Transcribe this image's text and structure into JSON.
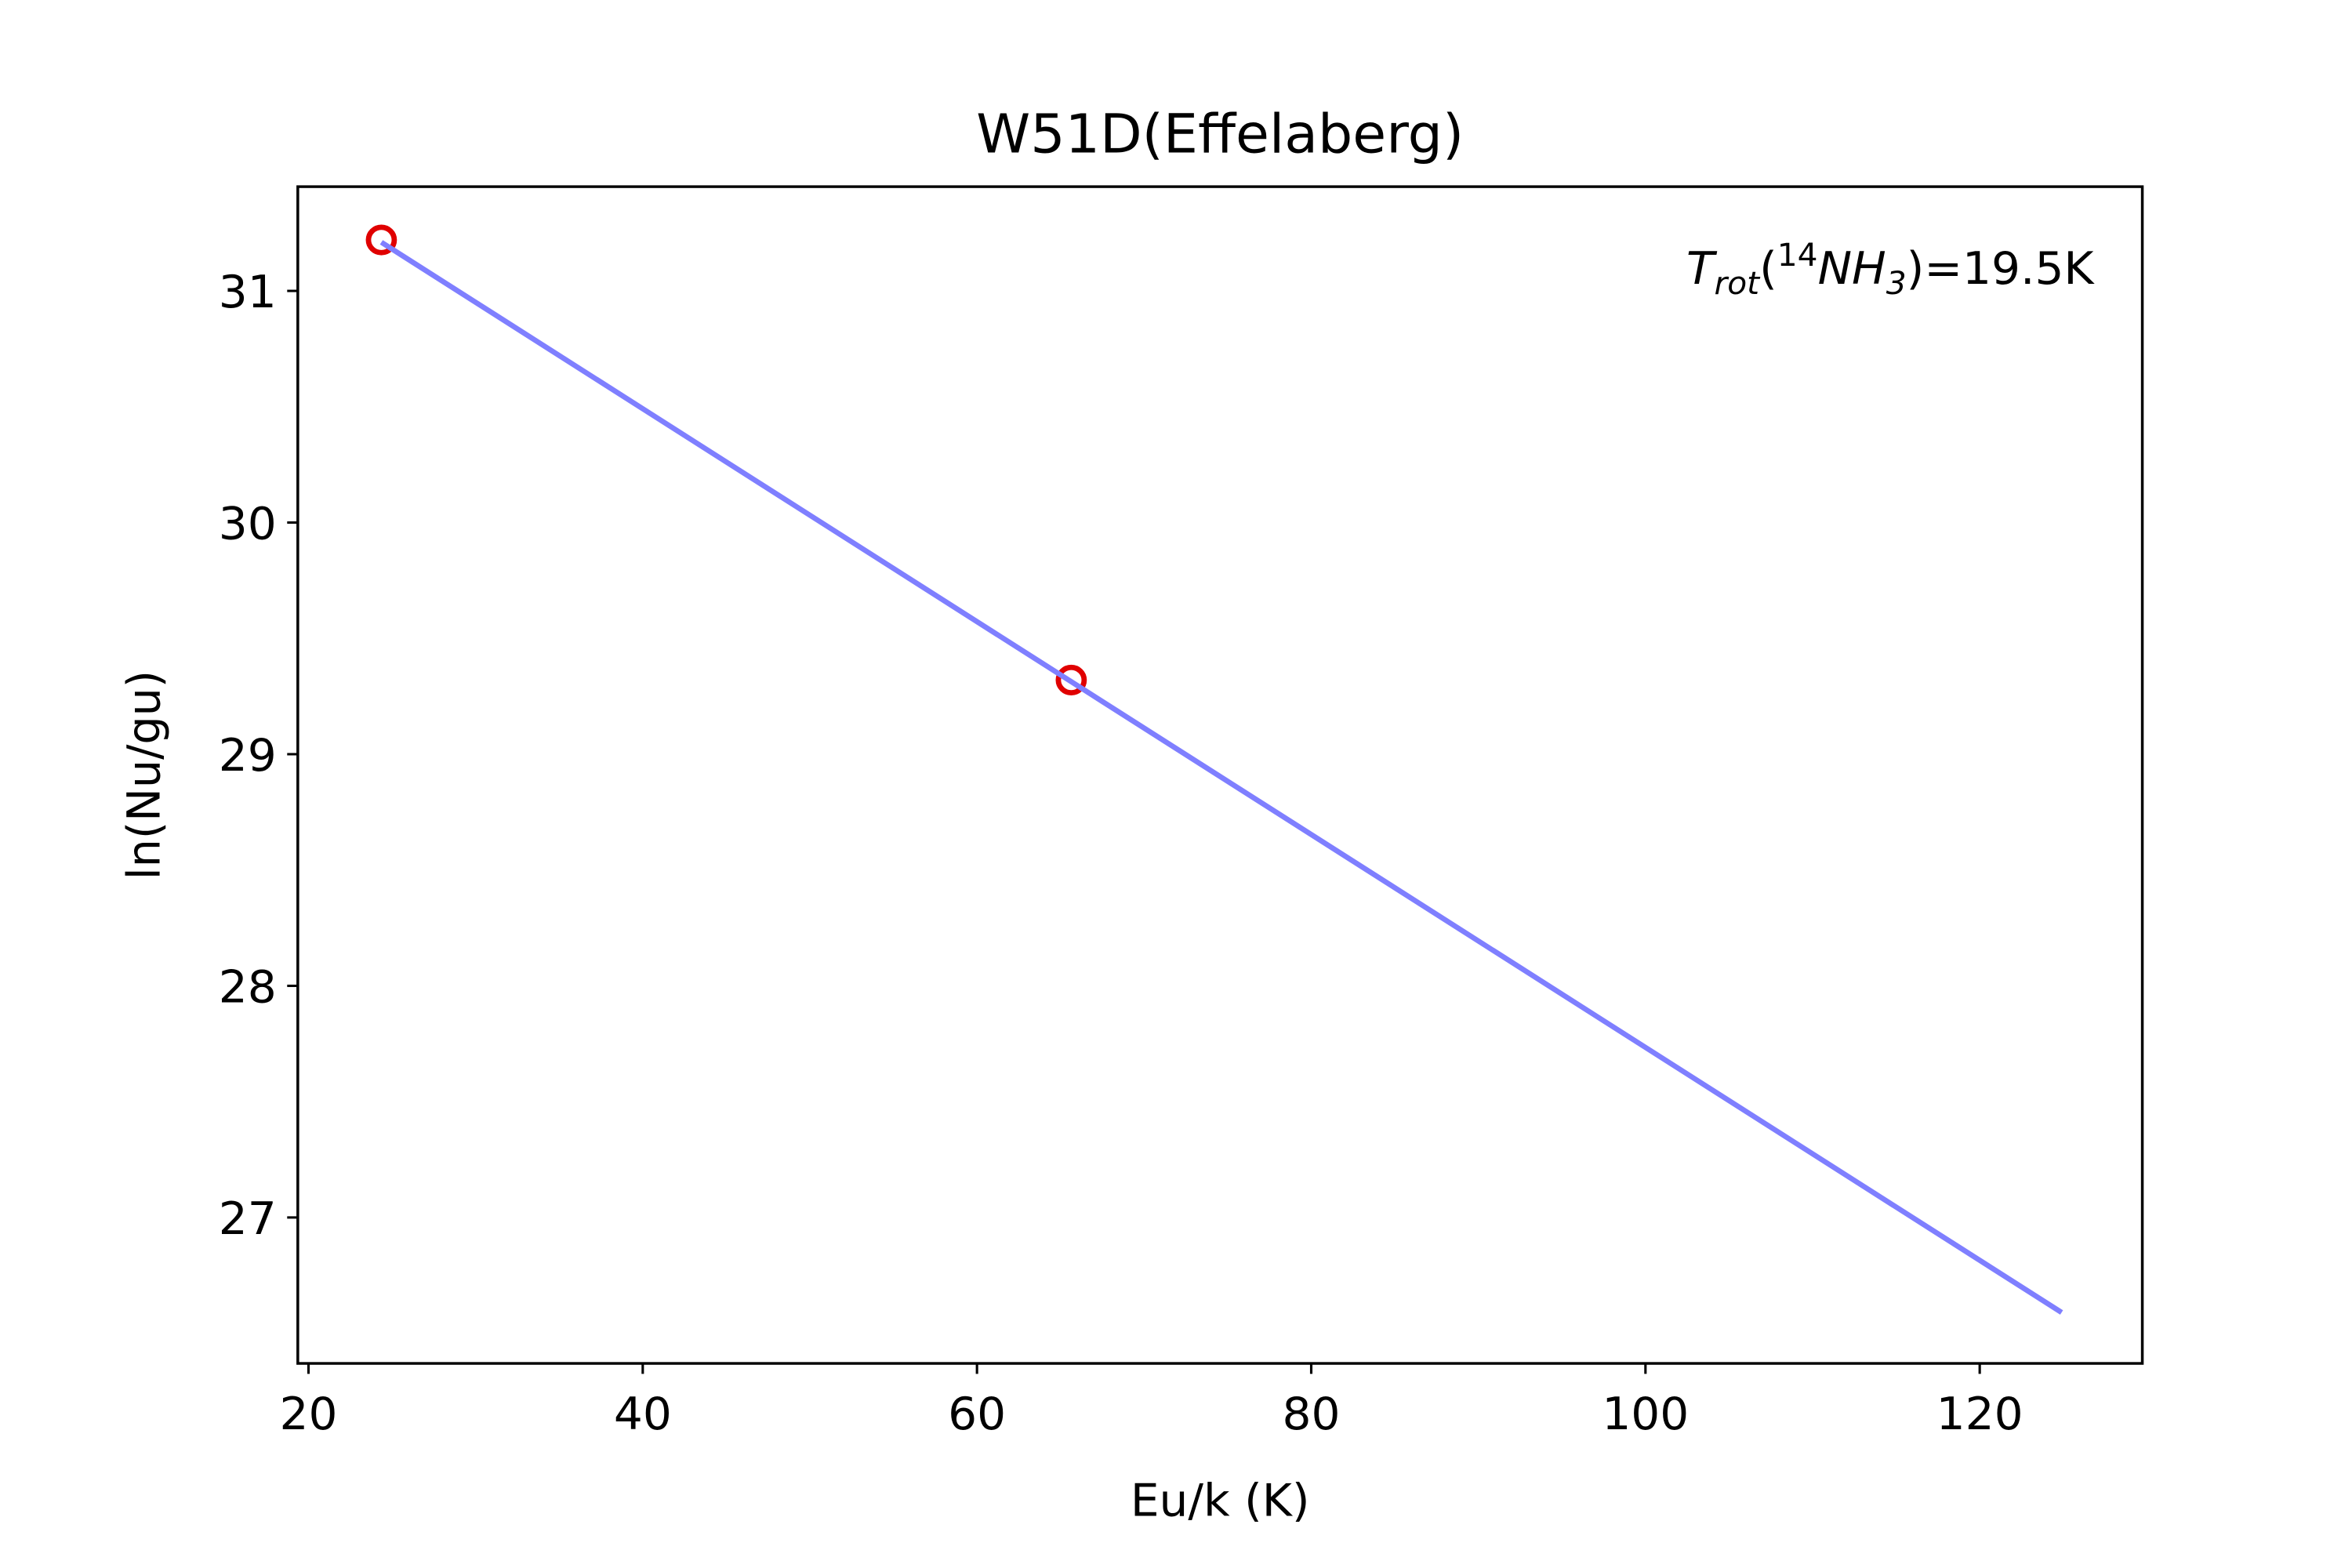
{
  "chart_data": {
    "type": "scatter",
    "title": "W51D(Effelaberg)",
    "xlabel": "Eu/k (K)",
    "ylabel": "ln(Nu/gu)",
    "annotation": [
      "T",
      "rot",
      "(",
      "14",
      "NH",
      "3",
      ")=19.5K"
    ],
    "series": [
      {
        "kind": "points",
        "color": "#e00000",
        "x": [
          24.36,
          65.64
        ],
        "values": [
          31.22,
          29.32
        ]
      },
      {
        "kind": "line",
        "color": "#7f7fff",
        "x": [
          24.36,
          124.9
        ],
        "values": [
          31.21,
          26.59
        ]
      }
    ],
    "xlim": [
      19.36,
      129.73
    ],
    "xticks": [
      20,
      40,
      60,
      80,
      100,
      120
    ],
    "ylim": [
      26.37,
      31.45
    ],
    "yticks": [
      27,
      28,
      29,
      30,
      31
    ]
  }
}
